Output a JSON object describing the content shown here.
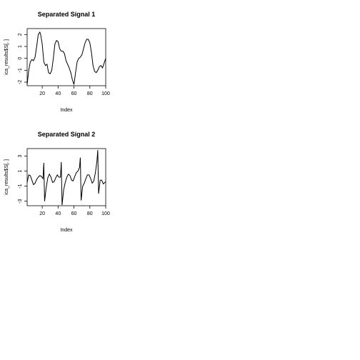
{
  "chart_data": [
    {
      "type": "line",
      "title": "Separated Signal 1",
      "xlabel": "Index",
      "ylabel": "ica_results$S[, ]",
      "xlim": [
        1,
        100
      ],
      "ylim": [
        -2.3,
        2.5
      ],
      "xticks": [
        20,
        40,
        60,
        80,
        100
      ],
      "yticks": [
        -2,
        -1,
        0,
        1,
        2
      ],
      "grid": false,
      "series": [
        {
          "x": [
            1,
            3,
            5,
            7,
            9,
            11,
            13,
            15,
            17,
            18,
            20,
            22,
            24,
            26,
            28,
            30,
            32,
            34,
            36,
            38,
            40,
            42,
            44,
            46,
            48,
            50,
            52,
            54,
            56,
            58,
            60,
            62,
            64,
            66,
            68,
            70,
            72,
            74,
            76,
            78,
            80,
            82,
            84,
            86,
            88,
            90,
            92,
            94,
            96,
            98,
            100
          ],
          "values": [
            -2.2,
            -1.0,
            -0.3,
            -0.1,
            -0.2,
            0.1,
            1.0,
            2.0,
            2.2,
            2.0,
            1.2,
            -0.3,
            -0.6,
            -0.5,
            -1.2,
            -1.3,
            -1.0,
            0.0,
            1.2,
            1.5,
            1.4,
            0.8,
            0.6,
            0.6,
            0.4,
            -0.2,
            -0.5,
            -0.8,
            -1.2,
            -1.8,
            -2.2,
            -1.2,
            -0.3,
            0.0,
            0.1,
            0.3,
            0.8,
            1.3,
            1.6,
            1.6,
            1.3,
            0.5,
            -0.6,
            -1.1,
            -1.2,
            -1.0,
            -0.7,
            -0.6,
            -0.8,
            -0.4,
            0.0
          ]
        }
      ]
    },
    {
      "type": "line",
      "title": "Separated Signal 2",
      "xlabel": "Index",
      "ylabel": "ica_results$S[, ]",
      "xlim": [
        1,
        100
      ],
      "ylim": [
        -3.6,
        4.0
      ],
      "xticks": [
        20,
        40,
        60,
        80,
        100
      ],
      "yticks": [
        -3,
        -1,
        1,
        3
      ],
      "grid": false,
      "series": [
        {
          "x": [
            1,
            3,
            5,
            7,
            9,
            11,
            13,
            15,
            17,
            19,
            21,
            22,
            23,
            25,
            27,
            29,
            31,
            33,
            35,
            37,
            39,
            41,
            43,
            44,
            45,
            47,
            49,
            51,
            53,
            55,
            57,
            59,
            61,
            63,
            65,
            67,
            68,
            69,
            71,
            73,
            75,
            77,
            79,
            81,
            83,
            85,
            87,
            89,
            90,
            91,
            93,
            95,
            97,
            100
          ],
          "values": [
            -0.5,
            0.5,
            0.4,
            -0.2,
            -0.8,
            -0.6,
            -0.1,
            0.2,
            0.4,
            0.3,
            0.0,
            2.1,
            -3.0,
            -1.2,
            0.1,
            0.6,
            0.2,
            -0.5,
            -0.4,
            0.1,
            0.5,
            0.2,
            0.2,
            2.2,
            -3.5,
            -1.5,
            -0.5,
            0.2,
            0.6,
            0.4,
            -0.2,
            -0.3,
            0.3,
            0.8,
            1.0,
            1.5,
            2.8,
            -2.9,
            -1.0,
            -0.6,
            0.0,
            0.5,
            0.5,
            0.0,
            -0.6,
            -0.3,
            0.8,
            2.4,
            3.8,
            -2.0,
            -0.2,
            -0.2,
            -0.7,
            -0.4
          ]
        }
      ]
    }
  ]
}
